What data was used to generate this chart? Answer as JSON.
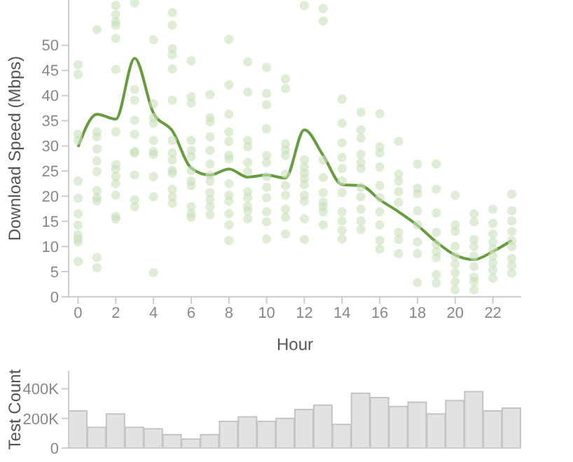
{
  "chart_data": [
    {
      "type": "scatter",
      "xlabel": "Hour",
      "ylabel": "Download Speed (Mbps)",
      "xlim": [
        -0.5,
        23.5
      ],
      "xticks": [
        0,
        2,
        4,
        6,
        8,
        10,
        12,
        14,
        16,
        18,
        20,
        22
      ],
      "ylim": [
        0,
        59
      ],
      "yticks": [
        0,
        5,
        10,
        15,
        20,
        25,
        30,
        35,
        40,
        45,
        50
      ],
      "series": [
        {
          "type": "scatter",
          "marker": "circle",
          "color": "#c9e0ba",
          "x": [
            0,
            0,
            0,
            0,
            0,
            0,
            0,
            0,
            0,
            0,
            0,
            0,
            1,
            1,
            1,
            1,
            1,
            1,
            1,
            1,
            1,
            1,
            1,
            2,
            2,
            2,
            2,
            2,
            2,
            2,
            2,
            2,
            2,
            2,
            2,
            2,
            2,
            3,
            3,
            3,
            3,
            3,
            3,
            3,
            3,
            3,
            3,
            4,
            4,
            4,
            4,
            4,
            4,
            4,
            4,
            4,
            4,
            5,
            5,
            5,
            5,
            5,
            5,
            5,
            5,
            5,
            5,
            5,
            5,
            5,
            5,
            6,
            6,
            6,
            6,
            6,
            6,
            6,
            6,
            6,
            6,
            6,
            6,
            7,
            7,
            7,
            7,
            7,
            7,
            7,
            7,
            7,
            7,
            7,
            7,
            8,
            8,
            8,
            8,
            8,
            8,
            8,
            8,
            8,
            8,
            8,
            8,
            8,
            9,
            9,
            9,
            9,
            9,
            9,
            9,
            9,
            9,
            9,
            9,
            10,
            10,
            10,
            10,
            10,
            10,
            10,
            10,
            10,
            10,
            10,
            10,
            11,
            11,
            11,
            11,
            11,
            11,
            11,
            11,
            11,
            11,
            11,
            12,
            12,
            12,
            12,
            12,
            12,
            12,
            12,
            12,
            12,
            13,
            13,
            13,
            13,
            13,
            13,
            13,
            13,
            13,
            14,
            14,
            14,
            14,
            14,
            14,
            14,
            14,
            14,
            14,
            14,
            15,
            15,
            15,
            15,
            15,
            15,
            15,
            15,
            15,
            15,
            15,
            16,
            16,
            16,
            16,
            16,
            16,
            16,
            16,
            16,
            16,
            17,
            17,
            17,
            17,
            17,
            17,
            17,
            17,
            18,
            18,
            18,
            18,
            18,
            18,
            18,
            18,
            19,
            19,
            19,
            19,
            19,
            19,
            19,
            19,
            19,
            20,
            20,
            20,
            20,
            20,
            20,
            20,
            20,
            20,
            21,
            21,
            21,
            21,
            21,
            21,
            21,
            21,
            21,
            22,
            22,
            22,
            22,
            22,
            22,
            22,
            22,
            22,
            23,
            23,
            23,
            23,
            23,
            23,
            23,
            23,
            23
          ],
          "values": [
            46.1,
            44.2,
            32.3,
            31.1,
            23,
            19.6,
            16.5,
            14.2,
            12.3,
            11.5,
            10.9,
            7,
            53.1,
            32.8,
            31.8,
            29.4,
            27,
            24.9,
            21.1,
            19.7,
            19.1,
            7.8,
            5.8,
            57.9,
            56.1,
            54.7,
            54,
            51.4,
            45.2,
            32.8,
            26.3,
            25.3,
            23.9,
            22.5,
            20.2,
            16,
            15.5,
            58.4,
            41.2,
            39.1,
            35.1,
            32.3,
            28.9,
            28.6,
            24.2,
            19.3,
            17.9,
            51.1,
            38.4,
            35.6,
            34.5,
            31.1,
            28.9,
            28.3,
            23.9,
            19.9,
            4.8,
            56.5,
            54,
            49.3,
            48.1,
            45.3,
            39.1,
            31.1,
            28.6,
            27.2,
            25.1,
            24.6,
            21.4,
            19.9,
            18.6,
            46.9,
            39.8,
            38.5,
            31.1,
            29.1,
            27.9,
            25.1,
            23,
            22.1,
            17.9,
            16.5,
            15.8,
            40.2,
            35.6,
            34.8,
            31.8,
            29.1,
            26.4,
            24.2,
            23,
            20.7,
            19.3,
            17.9,
            16.3,
            51.2,
            42.1,
            36.3,
            32.8,
            30.9,
            28.1,
            27.4,
            22.5,
            20.2,
            19,
            16.5,
            14.3,
            11.2,
            46.7,
            40.7,
            31.1,
            29.8,
            26.7,
            24.9,
            20.9,
            19.7,
            18,
            17.1,
            15.5,
            45.6,
            40.4,
            38.2,
            33.4,
            28.1,
            26.7,
            23.9,
            21.8,
            19.7,
            16.9,
            14.9,
            11.5,
            43.3,
            41.4,
            30.4,
            29.2,
            28.1,
            24.4,
            22.1,
            20.2,
            17.4,
            15.8,
            12.5,
            57.9,
            27.2,
            25.8,
            24.6,
            23.5,
            22.3,
            20.2,
            19,
            15.5,
            11.4,
            57.3,
            54.8,
            27.2,
            23.7,
            20.7,
            18.8,
            17.9,
            16.9,
            14.3,
            39.3,
            34.5,
            30.6,
            27.7,
            25.5,
            23,
            20.7,
            16.9,
            15.1,
            13.2,
            11.5,
            36.7,
            33.2,
            31.6,
            28.3,
            26.7,
            25.5,
            21.8,
            19.9,
            17.4,
            15.1,
            13.4,
            36.4,
            29.8,
            28.6,
            25.8,
            22.1,
            19.7,
            16.9,
            14.3,
            11.2,
            9.5,
            30.9,
            24.4,
            23,
            20.9,
            18.8,
            12.8,
            11.4,
            8.6,
            26.4,
            21.6,
            20.5,
            17.1,
            14.3,
            10.9,
            8.6,
            2.8,
            26.4,
            21.4,
            16.7,
            12.8,
            10.4,
            9,
            7.8,
            4.4,
            2.7,
            20.2,
            14.3,
            13,
            10,
            8.1,
            6.5,
            4.8,
            3,
            1.4,
            16.5,
            14.9,
            11.4,
            10,
            8.1,
            6,
            3.9,
            3,
            1.4,
            17.4,
            14.6,
            12.5,
            10.9,
            9.5,
            8.1,
            6.7,
            5.3,
            3.7,
            20.4,
            17.1,
            15.1,
            13,
            11.2,
            10,
            7.6,
            6.2,
            4.7
          ]
        },
        {
          "type": "line",
          "color": "#659c3c",
          "x": [
            0,
            1,
            2,
            3,
            4,
            5,
            6,
            7,
            8,
            9,
            10,
            11,
            12,
            13,
            14,
            15,
            16,
            17,
            18,
            19,
            20,
            21,
            22,
            23
          ],
          "values": [
            29.8,
            36.3,
            35.3,
            47.4,
            36.5,
            33,
            25.6,
            24.2,
            25.4,
            23.8,
            24.2,
            23.6,
            33.2,
            28.1,
            22.3,
            22.1,
            19.3,
            16.9,
            14.2,
            10.9,
            8.3,
            7.4,
            9,
            11.2
          ]
        }
      ]
    },
    {
      "type": "bar",
      "ylabel": "Test Count",
      "tick_labels": "y",
      "color": "#e2e2e2",
      "categories": [
        null,
        null,
        null,
        null,
        null,
        null,
        null,
        null,
        null,
        null,
        null,
        null,
        null,
        null,
        null,
        null,
        null,
        null,
        null,
        null,
        null,
        null,
        null,
        null
      ],
      "values": [
        250000,
        140000,
        230000,
        140000,
        130000,
        90000,
        60000,
        90000,
        180000,
        210000,
        180000,
        200000,
        260000,
        290000,
        160000,
        370000,
        340000,
        280000,
        310000,
        230000,
        320000,
        380000,
        250000,
        270000
      ],
      "ylim": [
        0,
        520000
      ],
      "yticks": [
        0,
        {
          "value": 200000,
          "label": "200K"
        },
        {
          "value": 400000,
          "label": "400K"
        }
      ]
    }
  ]
}
